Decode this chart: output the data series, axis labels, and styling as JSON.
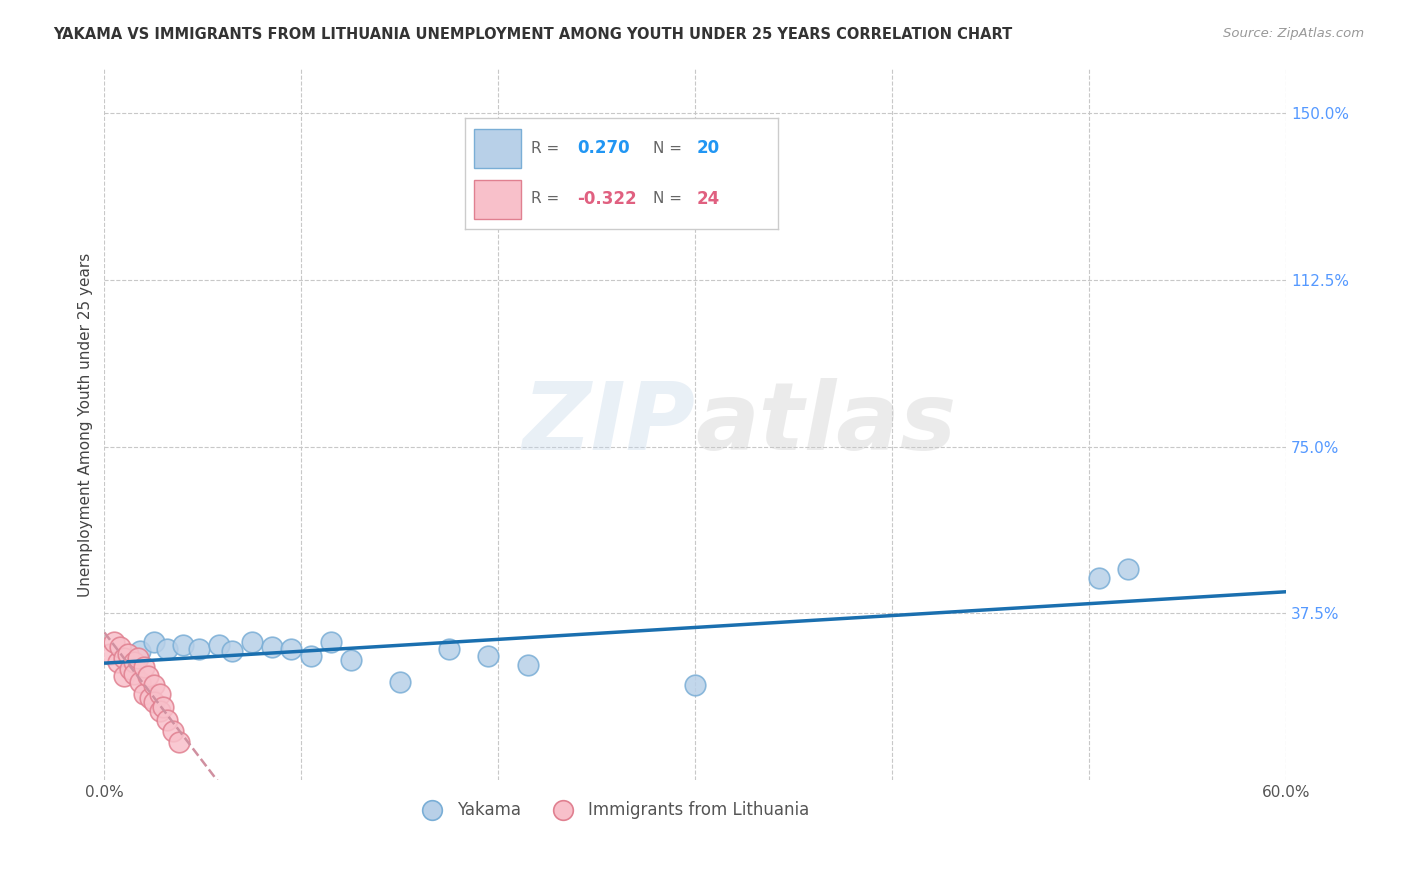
{
  "title": "YAKAMA VS IMMIGRANTS FROM LITHUANIA UNEMPLOYMENT AMONG YOUTH UNDER 25 YEARS CORRELATION CHART",
  "source": "Source: ZipAtlas.com",
  "ylabel": "Unemployment Among Youth under 25 years",
  "xlim": [
    0.0,
    0.6
  ],
  "ylim": [
    0.0,
    1.6
  ],
  "xtick_positions": [
    0.0,
    0.1,
    0.2,
    0.3,
    0.4,
    0.5,
    0.6
  ],
  "xticklabels": [
    "0.0%",
    "",
    "",
    "",
    "",
    "",
    "60.0%"
  ],
  "yticks_right": [
    0.375,
    0.75,
    1.125,
    1.5
  ],
  "yticklabels_right": [
    "37.5%",
    "75.0%",
    "112.5%",
    "150.0%"
  ],
  "grid_color": "#c8c8c8",
  "background_color": "#ffffff",
  "yakama_x": [
    0.018,
    0.025,
    0.032,
    0.04,
    0.048,
    0.058,
    0.065,
    0.075,
    0.085,
    0.095,
    0.105,
    0.115,
    0.125,
    0.15,
    0.175,
    0.195,
    0.215,
    0.3,
    0.505,
    0.52
  ],
  "yakama_y": [
    0.29,
    0.31,
    0.295,
    0.305,
    0.295,
    0.305,
    0.29,
    0.31,
    0.3,
    0.295,
    0.28,
    0.31,
    0.27,
    0.22,
    0.295,
    0.28,
    0.26,
    0.215,
    0.455,
    0.475
  ],
  "yakama_color": "#b8d0e8",
  "yakama_edge_color": "#7aaed6",
  "yakama_label": "Yakama",
  "yakama_R": 0.27,
  "yakama_N": 20,
  "lithuania_x": [
    0.003,
    0.005,
    0.007,
    0.008,
    0.01,
    0.01,
    0.012,
    0.013,
    0.015,
    0.015,
    0.017,
    0.018,
    0.02,
    0.02,
    0.022,
    0.023,
    0.025,
    0.025,
    0.028,
    0.028,
    0.03,
    0.032,
    0.035,
    0.038
  ],
  "lithuania_y": [
    0.285,
    0.31,
    0.265,
    0.3,
    0.275,
    0.235,
    0.285,
    0.25,
    0.265,
    0.24,
    0.275,
    0.22,
    0.255,
    0.195,
    0.235,
    0.185,
    0.215,
    0.175,
    0.195,
    0.155,
    0.165,
    0.135,
    0.11,
    0.085
  ],
  "lithuania_color": "#f8c0ca",
  "lithuania_edge_color": "#e08090",
  "lithuania_label": "Immigrants from Lithuania",
  "lithuania_R": -0.322,
  "lithuania_N": 24,
  "trendline_yakama_color": "#1a6faf",
  "trendline_lithuania_color": "#d090a0",
  "trendline_lithuania_style": "--",
  "legend_box_color_yakama": "#b8d0e8",
  "legend_box_color_yakama_edge": "#7aaed6",
  "legend_box_color_lithuania": "#f8c0ca",
  "legend_box_color_lithuania_edge": "#e08090",
  "legend_text_color": "#555555",
  "R_N_text_color_yakama": "#2196f3",
  "R_N_text_color_lithuania": "#e06080"
}
